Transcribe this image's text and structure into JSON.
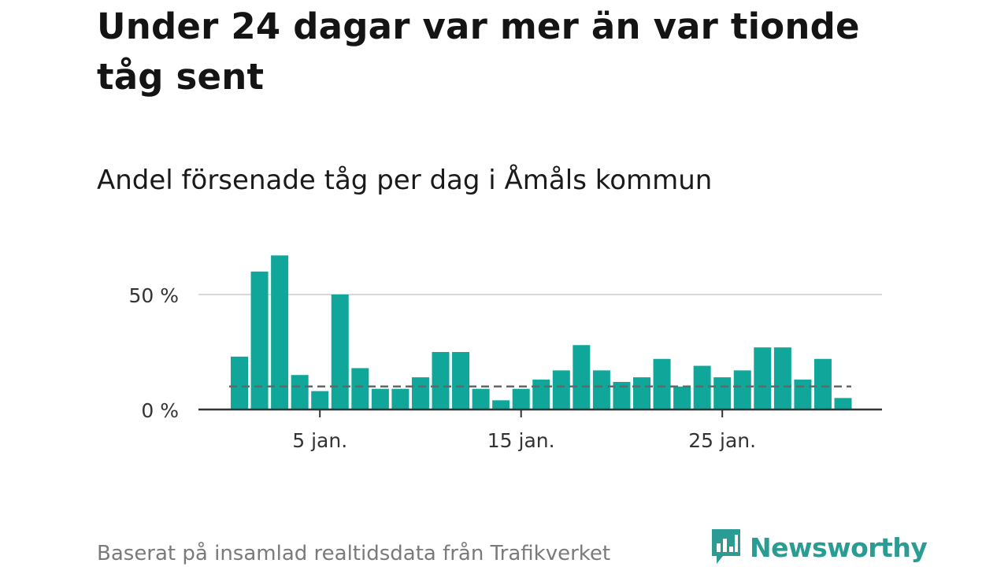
{
  "title": "Under 24 dagar var mer än var tionde tåg sent",
  "subtitle": "Andel försenade tåg per dag i Åmåls kommun",
  "source": "Baserat på insamlad realtidsdata från Trafikverket",
  "logo": {
    "text": "Newsworthy",
    "icon": "newsworthy-chart-bubble-icon"
  },
  "colors": {
    "bar": "#10a79a",
    "reference_line": "#666666",
    "grid": "#d9d9d9",
    "axis": "#333333",
    "brand": "#2a9c93"
  },
  "chart_data": {
    "type": "bar",
    "x": [
      1,
      2,
      3,
      4,
      5,
      6,
      7,
      8,
      9,
      10,
      11,
      12,
      13,
      14,
      15,
      16,
      17,
      18,
      19,
      20,
      21,
      22,
      23,
      24,
      25,
      26,
      27,
      28,
      29,
      30,
      31
    ],
    "values": [
      23,
      60,
      67,
      15,
      8,
      50,
      18,
      9,
      9,
      14,
      25,
      25,
      9,
      4,
      9,
      13,
      17,
      28,
      17,
      12,
      14,
      22,
      10,
      19,
      14,
      17,
      27,
      27,
      13,
      22,
      5
    ],
    "unit": "%",
    "reference_line": {
      "value": 10,
      "style": "dashed"
    },
    "ylim": [
      0,
      70
    ],
    "y_ticks": [
      {
        "value": 0,
        "label": "0 %"
      },
      {
        "value": 50,
        "label": "50 %"
      }
    ],
    "x_ticks": [
      {
        "value": 5,
        "label": "5 jan."
      },
      {
        "value": 15,
        "label": "15 jan."
      },
      {
        "value": 25,
        "label": "25 jan."
      }
    ],
    "grid": true,
    "legend": "none"
  }
}
